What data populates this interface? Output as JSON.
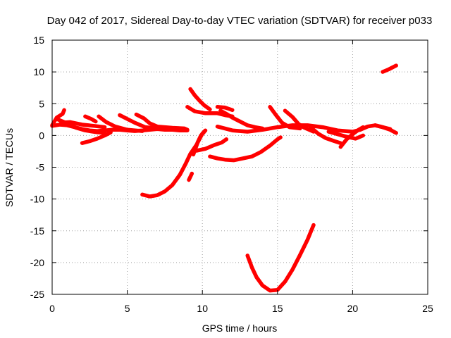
{
  "chart_data": {
    "type": "scatter",
    "title": "Day 042 of 2017, Sidereal Day-to-day VTEC variation (SDTVAR) for receiver p033",
    "xlabel": "GPS time / hours",
    "ylabel": "SDTVAR / TECUs",
    "xlim": [
      0,
      25
    ],
    "ylim": [
      -25,
      15
    ],
    "xticks": [
      "0",
      "5",
      "10",
      "15",
      "20",
      "25"
    ],
    "yticks": [
      "15",
      "10",
      "5",
      "0",
      "-5",
      "-10",
      "-15",
      "-20",
      "-25"
    ],
    "grid": true,
    "color": "#ff0000",
    "series": [
      {
        "values": [
          [
            0,
            1.5
          ],
          [
            0.5,
            1.7
          ],
          [
            1,
            1.6
          ],
          [
            1.5,
            1.3
          ],
          [
            2,
            1
          ],
          [
            2.5,
            0.8
          ],
          [
            3,
            0.7
          ],
          [
            3.5,
            0.8
          ],
          [
            4,
            0.9
          ],
          [
            4.5,
            0.9
          ],
          [
            5,
            0.8
          ],
          [
            5.5,
            0.7
          ],
          [
            6,
            0.8
          ],
          [
            6.5,
            0.9
          ],
          [
            7,
            1
          ],
          [
            7.5,
            0.9
          ],
          [
            8,
            0.9
          ],
          [
            8.5,
            0.8
          ],
          [
            9,
            0.8
          ]
        ]
      },
      {
        "values": [
          [
            0,
            1.6
          ],
          [
            0.3,
            2.8
          ],
          [
            0.7,
            3.4
          ],
          [
            0.8,
            4
          ]
        ]
      },
      {
        "values": [
          [
            0.4,
            2.5
          ],
          [
            1,
            1.9
          ],
          [
            1.6,
            1.2
          ],
          [
            2.2,
            0.8
          ],
          [
            3,
            0.5
          ],
          [
            3.5,
            0.4
          ]
        ]
      },
      {
        "values": [
          [
            0.6,
            2
          ],
          [
            1.2,
            2.1
          ],
          [
            2,
            1.7
          ],
          [
            2.8,
            1.5
          ],
          [
            3.5,
            1.3
          ]
        ]
      },
      {
        "values": [
          [
            2.2,
            3
          ],
          [
            2.6,
            2.6
          ],
          [
            2.9,
            2.2
          ]
        ]
      },
      {
        "values": [
          [
            2,
            -1.2
          ],
          [
            2.5,
            -0.9
          ],
          [
            3,
            -0.5
          ],
          [
            3.5,
            0
          ],
          [
            3.9,
            0.5
          ]
        ]
      },
      {
        "values": [
          [
            3.1,
            3
          ],
          [
            3.6,
            2.1
          ],
          [
            4.2,
            1.4
          ],
          [
            5,
            0.9
          ],
          [
            6,
            0.7
          ]
        ]
      },
      {
        "values": [
          [
            4.5,
            3.2
          ],
          [
            5,
            2.6
          ],
          [
            5.5,
            2
          ],
          [
            6.2,
            1.3
          ],
          [
            7,
            1.1
          ],
          [
            8,
            1
          ],
          [
            8.5,
            0.9
          ]
        ]
      },
      {
        "values": [
          [
            5.6,
            3.3
          ],
          [
            6.1,
            2.7
          ],
          [
            6.5,
            1.9
          ],
          [
            7,
            1.4
          ],
          [
            8,
            1.2
          ],
          [
            8.8,
            1.1
          ],
          [
            9,
            0.9
          ]
        ]
      },
      {
        "values": [
          [
            6,
            -9.3
          ],
          [
            6.5,
            -9.6
          ],
          [
            7,
            -9.4
          ],
          [
            7.5,
            -8.8
          ],
          [
            8,
            -7.8
          ],
          [
            8.5,
            -6.2
          ],
          [
            8.9,
            -4.4
          ],
          [
            9.2,
            -2.9
          ],
          [
            9.6,
            -1.5
          ],
          [
            10,
            0.3
          ],
          [
            10.2,
            0.8
          ]
        ]
      },
      {
        "values": [
          [
            9.1,
            -7
          ],
          [
            9.3,
            -6
          ]
        ]
      },
      {
        "values": [
          [
            9.4,
            -3
          ],
          [
            9.7,
            -1
          ],
          [
            9.9,
            0
          ],
          [
            10.1,
            0.5
          ]
        ]
      },
      {
        "values": [
          [
            9.6,
            -2.4
          ],
          [
            10.2,
            -2.1
          ],
          [
            10.8,
            -1.5
          ],
          [
            11.3,
            -1.1
          ],
          [
            11.6,
            -0.6
          ]
        ]
      },
      {
        "values": [
          [
            9.2,
            7.3
          ],
          [
            9.5,
            6.3
          ],
          [
            9.8,
            5.5
          ],
          [
            10.1,
            4.8
          ],
          [
            10.5,
            4.1
          ]
        ]
      },
      {
        "values": [
          [
            9,
            4.5
          ],
          [
            9.5,
            3.8
          ],
          [
            10.2,
            3.5
          ],
          [
            11,
            3.5
          ],
          [
            11.5,
            3.2
          ],
          [
            12,
            3
          ]
        ]
      },
      {
        "values": [
          [
            11,
            4.5
          ],
          [
            11.5,
            4.4
          ],
          [
            12,
            4
          ]
        ]
      },
      {
        "values": [
          [
            11.2,
            3.9
          ],
          [
            11.6,
            3.4
          ],
          [
            12,
            2.8
          ],
          [
            12.5,
            2.2
          ],
          [
            13,
            1.6
          ],
          [
            13.5,
            1.3
          ],
          [
            14,
            1.1
          ]
        ]
      },
      {
        "values": [
          [
            11,
            1.4
          ],
          [
            12,
            0.8
          ],
          [
            13,
            0.6
          ],
          [
            14,
            0.9
          ],
          [
            15,
            1.3
          ],
          [
            16,
            1.6
          ],
          [
            17,
            1.6
          ],
          [
            18,
            1.3
          ],
          [
            19,
            0.8
          ],
          [
            20,
            0.6
          ],
          [
            20.5,
            0.9
          ],
          [
            21,
            1.4
          ],
          [
            21.5,
            1.6
          ],
          [
            22,
            1.3
          ],
          [
            22.5,
            1
          ]
        ]
      },
      {
        "values": [
          [
            14.5,
            4.5
          ],
          [
            14.9,
            3.2
          ],
          [
            15.3,
            2
          ],
          [
            15.8,
            1.3
          ],
          [
            16.5,
            1.1
          ]
        ]
      },
      {
        "values": [
          [
            15.5,
            3.9
          ],
          [
            16,
            2.9
          ],
          [
            16.4,
            1.8
          ],
          [
            16.8,
            1.2
          ],
          [
            17.4,
            0.6
          ]
        ]
      },
      {
        "values": [
          [
            17.2,
            1.3
          ],
          [
            17.7,
            0.3
          ],
          [
            18.2,
            -0.4
          ],
          [
            18.8,
            -0.9
          ],
          [
            19.2,
            -1.2
          ]
        ]
      },
      {
        "values": [
          [
            18.4,
            0.6
          ],
          [
            19,
            0.2
          ],
          [
            19.6,
            -0.2
          ],
          [
            20.2,
            -0.5
          ],
          [
            20.7,
            0
          ]
        ]
      },
      {
        "values": [
          [
            19.2,
            -1.8
          ],
          [
            19.6,
            -0.6
          ],
          [
            20,
            0.2
          ],
          [
            20.4,
            0.9
          ],
          [
            20.7,
            1.3
          ]
        ]
      },
      {
        "values": [
          [
            21.5,
            1.6
          ],
          [
            22,
            1.3
          ],
          [
            22.5,
            0.9
          ],
          [
            22.9,
            0.4
          ]
        ]
      },
      {
        "values": [
          [
            22,
            10
          ],
          [
            22.4,
            10.4
          ],
          [
            22.9,
            11
          ]
        ]
      },
      {
        "values": [
          [
            10.5,
            -3.3
          ],
          [
            11,
            -3.6
          ],
          [
            11.5,
            -3.8
          ],
          [
            12.1,
            -3.9
          ],
          [
            12.7,
            -3.6
          ],
          [
            13.3,
            -3.3
          ],
          [
            13.9,
            -2.6
          ],
          [
            14.5,
            -1.6
          ],
          [
            15,
            -0.6
          ],
          [
            15.2,
            -0.3
          ]
        ]
      },
      {
        "values": [
          [
            13,
            -18.9
          ],
          [
            13.3,
            -20.8
          ],
          [
            13.6,
            -22.3
          ],
          [
            14,
            -23.6
          ],
          [
            14.5,
            -24.4
          ],
          [
            15,
            -24.3
          ],
          [
            15.5,
            -23
          ],
          [
            16,
            -21.1
          ],
          [
            16.5,
            -18.8
          ],
          [
            17,
            -16.4
          ],
          [
            17.4,
            -14.1
          ]
        ]
      }
    ]
  }
}
